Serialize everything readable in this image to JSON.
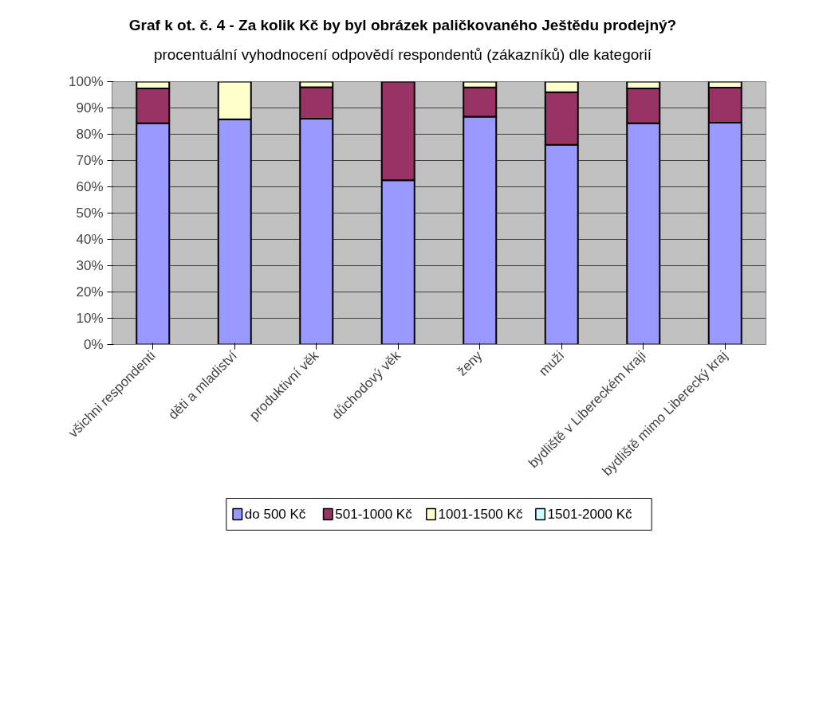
{
  "chart_data": {
    "type": "bar",
    "stacked": true,
    "title": "Graf k ot. č. 4 - Za kolik Kč by byl obrázek paličkovaného Ještědu prodejný?",
    "subtitle": "procentuální vyhodnocení odpovědí respondentů (zákazníků) dle kategorií",
    "categories": [
      "všichni respondenti",
      "děti a mladiství",
      "produktivní věk",
      "důchodový věk",
      "ženy",
      "muži",
      "bydliště v Libereckém kraji",
      "bydliště mimo Liberecký kraj"
    ],
    "series": [
      {
        "name": "do 500 Kč",
        "color": "#9999ff",
        "values": [
          84.2,
          85.7,
          85.9,
          62.5,
          86.7,
          76,
          84.2,
          84.4
        ]
      },
      {
        "name": "501-1000 Kč",
        "color": "#993366",
        "values": [
          13.2,
          0,
          12,
          37.5,
          11.1,
          20,
          13.2,
          13.3
        ]
      },
      {
        "name": "1001-1500 Kč",
        "color": "#ffffcc",
        "values": [
          2.6,
          14.3,
          2.1,
          0,
          2.2,
          4,
          2.6,
          2.3
        ]
      },
      {
        "name": "1501-2000 Kč",
        "color": "#ccffff",
        "values": [
          0,
          0,
          0,
          0,
          0,
          0,
          0,
          0
        ]
      }
    ],
    "ylim": [
      0,
      100
    ],
    "yticks": [
      {
        "value": 0,
        "label": "0%"
      },
      {
        "value": 10,
        "label": "10%"
      },
      {
        "value": 20,
        "label": "20%"
      },
      {
        "value": 30,
        "label": "30%"
      },
      {
        "value": 40,
        "label": "40%"
      },
      {
        "value": 50,
        "label": "50%"
      },
      {
        "value": 60,
        "label": "60%"
      },
      {
        "value": 70,
        "label": "70%"
      },
      {
        "value": 80,
        "label": "80%"
      },
      {
        "value": 90,
        "label": "90%"
      },
      {
        "value": 100,
        "label": "100%"
      }
    ],
    "grid": "y",
    "legend": "bottom"
  }
}
